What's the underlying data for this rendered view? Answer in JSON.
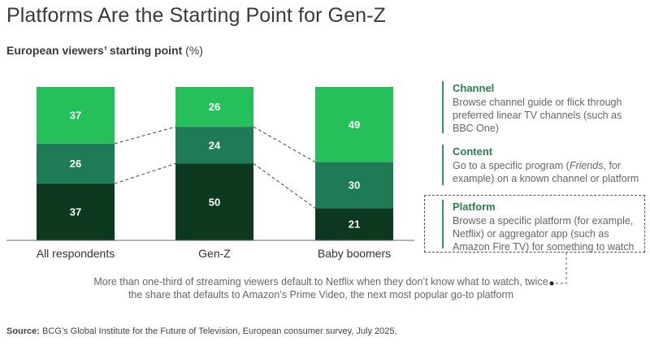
{
  "title": "Platforms Are the Starting Point for Gen-Z",
  "subtitle": "European viewers’ starting point",
  "subtitle_unit": "(%)",
  "colors": {
    "channel": "#25c05a",
    "content": "#1f7a56",
    "platform": "#0d3a1e",
    "accent_text": "#2e7d4f"
  },
  "chart_data": {
    "type": "bar",
    "stacked": true,
    "categories": [
      "All respondents",
      "Gen-Z",
      "Baby boomers"
    ],
    "series": [
      {
        "name": "Platform",
        "values": [
          37,
          50,
          21
        ]
      },
      {
        "name": "Content",
        "values": [
          26,
          24,
          30
        ]
      },
      {
        "name": "Channel",
        "values": [
          37,
          26,
          49
        ]
      }
    ],
    "ylim": [
      0,
      100
    ]
  },
  "legend": [
    {
      "name": "Channel",
      "desc": "Browse channel guide or flick through preferred linear TV channels (such as BBC One)"
    },
    {
      "name": "Content",
      "desc_pre": "Go to a specific program (",
      "desc_italic": "Friends",
      "desc_post": ", for example) on a known channel or platform"
    },
    {
      "name": "Platform",
      "desc": "Browse a specific platform (for example, Netflix) or aggregator app (such as Amazon Fire TV) for something to watch"
    }
  ],
  "note": "More than one-third of streaming viewers default to Netflix when they don’t know what to watch, twice the share that defaults to Amazon’s Prime Video, the next most popular go-to platform",
  "source_label": "Source:",
  "source_text": "BCG’s Global Institute for the Future of Television, European consumer survey, July 2025."
}
